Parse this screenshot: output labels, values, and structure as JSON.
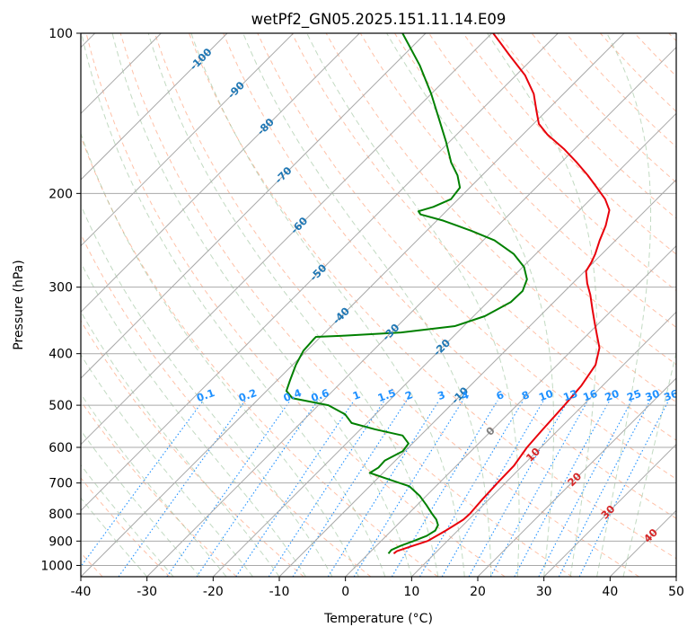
{
  "chart_data": {
    "type": "line",
    "title": "wetPf2_GN05.2025.151.11.14.E09",
    "xlabel": "Temperature (°C)",
    "ylabel": "Pressure (hPa)",
    "xlim": [
      -40,
      50
    ],
    "ylim": [
      1050,
      100
    ],
    "y_scale": "log",
    "grid": true,
    "x_ticks": [
      -40,
      -30,
      -20,
      -10,
      0,
      10,
      20,
      30,
      40,
      50
    ],
    "y_ticks": [
      100,
      200,
      300,
      400,
      500,
      600,
      700,
      800,
      900,
      1000
    ],
    "series": [
      {
        "name": "",
        "role": "temperature",
        "color": "#e8000b",
        "points": [
          {
            "p": 950,
            "t": 3.8
          },
          {
            "p": 940,
            "t": 3.9
          },
          {
            "p": 925,
            "t": 5.0
          },
          {
            "p": 900,
            "t": 7.0
          },
          {
            "p": 860,
            "t": 8.2
          },
          {
            "p": 820,
            "t": 9.2
          },
          {
            "p": 800,
            "t": 9.3
          },
          {
            "p": 750,
            "t": 9.0
          },
          {
            "p": 700,
            "t": 8.8
          },
          {
            "p": 650,
            "t": 8.7
          },
          {
            "p": 600,
            "t": 7.9
          },
          {
            "p": 560,
            "t": 7.6
          },
          {
            "p": 500,
            "t": 7.2
          },
          {
            "p": 460,
            "t": 6.8
          },
          {
            "p": 420,
            "t": 5.8
          },
          {
            "p": 390,
            "t": 3.8
          },
          {
            "p": 370,
            "t": 1.6
          },
          {
            "p": 350,
            "t": -0.7
          },
          {
            "p": 330,
            "t": -3.1
          },
          {
            "p": 310,
            "t": -5.6
          },
          {
            "p": 295,
            "t": -7.8
          },
          {
            "p": 280,
            "t": -9.8
          },
          {
            "p": 270,
            "t": -10.3
          },
          {
            "p": 260,
            "t": -11.0
          },
          {
            "p": 245,
            "t": -12.4
          },
          {
            "p": 230,
            "t": -13.7
          },
          {
            "p": 215,
            "t": -15.5
          },
          {
            "p": 205,
            "t": -17.8
          },
          {
            "p": 195,
            "t": -20.8
          },
          {
            "p": 185,
            "t": -24.0
          },
          {
            "p": 175,
            "t": -27.6
          },
          {
            "p": 165,
            "t": -31.6
          },
          {
            "p": 155,
            "t": -36.3
          },
          {
            "p": 148,
            "t": -39.2
          },
          {
            "p": 140,
            "t": -41.5
          },
          {
            "p": 130,
            "t": -44.5
          },
          {
            "p": 120,
            "t": -48.6
          },
          {
            "p": 110,
            "t": -54.0
          },
          {
            "p": 104,
            "t": -57.4
          },
          {
            "p": 100,
            "t": -59.8
          }
        ]
      },
      {
        "name": "",
        "role": "dewpoint",
        "color": "#008000",
        "points": [
          {
            "p": 950,
            "t": 3.0
          },
          {
            "p": 935,
            "t": 2.9
          },
          {
            "p": 920,
            "t": 3.6
          },
          {
            "p": 900,
            "t": 4.9
          },
          {
            "p": 880,
            "t": 6.1
          },
          {
            "p": 860,
            "t": 6.6
          },
          {
            "p": 840,
            "t": 6.2
          },
          {
            "p": 820,
            "t": 5.1
          },
          {
            "p": 800,
            "t": 3.6
          },
          {
            "p": 770,
            "t": 1.4
          },
          {
            "p": 740,
            "t": -1.0
          },
          {
            "p": 710,
            "t": -4.0
          },
          {
            "p": 690,
            "t": -8.0
          },
          {
            "p": 670,
            "t": -12.0
          },
          {
            "p": 655,
            "t": -11.5
          },
          {
            "p": 635,
            "t": -11.6
          },
          {
            "p": 610,
            "t": -10.3
          },
          {
            "p": 590,
            "t": -10.6
          },
          {
            "p": 570,
            "t": -12.7
          },
          {
            "p": 555,
            "t": -17.8
          },
          {
            "p": 540,
            "t": -22.3
          },
          {
            "p": 520,
            "t": -24.6
          },
          {
            "p": 500,
            "t": -28.5
          },
          {
            "p": 485,
            "t": -35.0
          },
          {
            "p": 470,
            "t": -37.0
          },
          {
            "p": 450,
            "t": -38.0
          },
          {
            "p": 420,
            "t": -39.5
          },
          {
            "p": 395,
            "t": -40.5
          },
          {
            "p": 375,
            "t": -40.7
          },
          {
            "p": 372,
            "t": -40.7
          },
          {
            "p": 370,
            "t": -36.5
          },
          {
            "p": 365,
            "t": -28.5
          },
          {
            "p": 355,
            "t": -21.3
          },
          {
            "p": 340,
            "t": -18.3
          },
          {
            "p": 320,
            "t": -16.5
          },
          {
            "p": 305,
            "t": -16.4
          },
          {
            "p": 290,
            "t": -17.5
          },
          {
            "p": 275,
            "t": -19.8
          },
          {
            "p": 260,
            "t": -23.3
          },
          {
            "p": 245,
            "t": -28.3
          },
          {
            "p": 235,
            "t": -33.3
          },
          {
            "p": 225,
            "t": -39.0
          },
          {
            "p": 219,
            "t": -43.4
          },
          {
            "p": 216,
            "t": -44.2
          },
          {
            "p": 212,
            "t": -42.6
          },
          {
            "p": 205,
            "t": -41.1
          },
          {
            "p": 195,
            "t": -41.5
          },
          {
            "p": 185,
            "t": -43.7
          },
          {
            "p": 175,
            "t": -46.6
          },
          {
            "p": 160,
            "t": -50.5
          },
          {
            "p": 145,
            "t": -55.0
          },
          {
            "p": 130,
            "t": -60.0
          },
          {
            "p": 115,
            "t": -66.0
          },
          {
            "p": 100,
            "t": -73.5
          }
        ]
      }
    ],
    "isotherm_labels": [
      "-100",
      "-90",
      "-80",
      "-70",
      "-60",
      "-50",
      "-40",
      "-30",
      "-20",
      "-10",
      "0",
      "10",
      "20",
      "30",
      "40"
    ],
    "mixing_ratio_labels": [
      "0.1",
      "0.2",
      "0.4",
      "0.6",
      "1",
      "1.5",
      "2",
      "3",
      "4",
      "6",
      "8",
      "10",
      "13",
      "16",
      "20",
      "25",
      "30",
      "36"
    ],
    "colors": {
      "isotherm_label_cold": "#1f77b4",
      "isotherm_label_zero": "#808080",
      "isotherm_label_warm": "#d62728",
      "mixing_ratio": "#1e90ff",
      "dry_adiabat": "#ffa07a",
      "moist_adiabat": "#8fbc8f",
      "grid": "#a9a9a9"
    }
  }
}
